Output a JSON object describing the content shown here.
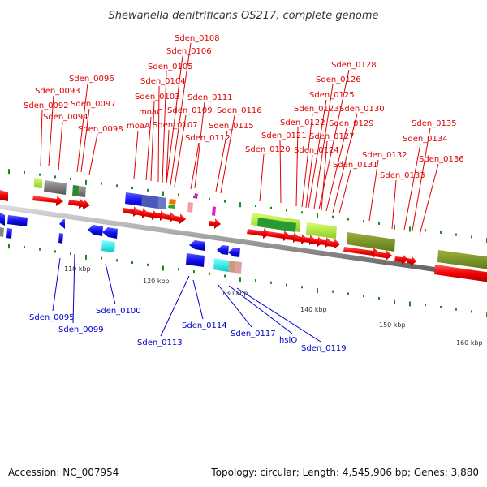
{
  "title": "Shewanella denitrificans OS217, complete genome",
  "footer": {
    "accession": "Accession: NC_007954",
    "summary": "Topology: circular; Length: 4,545,906 bp; Genes: 3,880"
  },
  "colors": {
    "forward_label": "#e00000",
    "reverse_label": "#0000cc",
    "backbone": "#8c8c8c",
    "tick": "#1a8a1a"
  },
  "ticks": [
    "110 kbp",
    "120 kbp",
    "130 kbp",
    "140 kbp",
    "150 kbp",
    "160 kbp"
  ],
  "forward_labels": [
    "Sden_0108",
    "Sden_0106",
    "Sden_0105",
    "Sden_0104",
    "Sden_0103",
    "moaC",
    "moaA",
    "Sden_0107",
    "Sden_0109",
    "Sden_0111",
    "Sden_0112",
    "Sden_0116",
    "Sden_0115",
    "Sden_0096",
    "Sden_0093",
    "Sden_0092",
    "Sden_0097",
    "Sden_0094",
    "Sden_0098",
    "Sden_0128",
    "Sden_0126",
    "Sden_0125",
    "Sden_0123",
    "Sden_0130",
    "Sden_0122",
    "Sden_0129",
    "Sden_0121",
    "Sden_0127",
    "Sden_0120",
    "Sden_0124",
    "Sden_0131",
    "Sden_0132",
    "Sden_0133",
    "Sden_0135",
    "Sden_0134",
    "Sden_0136"
  ],
  "reverse_labels": [
    "Sden_0095",
    "Sden_0099",
    "Sden_0100",
    "Sden_0113",
    "Sden_0114",
    "Sden_0117",
    "hslO",
    "Sden_0119"
  ]
}
